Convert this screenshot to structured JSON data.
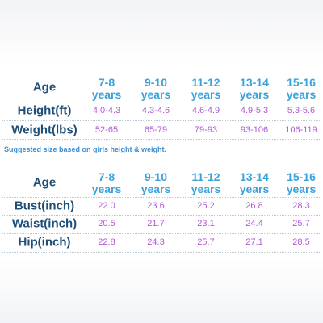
{
  "tables": [
    {
      "header": {
        "label": "Age",
        "columns": [
          {
            "age": "7-8",
            "unit": "years"
          },
          {
            "age": "9-10",
            "unit": "years"
          },
          {
            "age": "11-12",
            "unit": "years"
          },
          {
            "age": "13-14",
            "unit": "years"
          },
          {
            "age": "15-16",
            "unit": "years"
          }
        ]
      },
      "rows": [
        {
          "label": "Height(ft)",
          "values": [
            "4.0-4.3",
            "4.3-4.6",
            "4.6-4.9",
            "4.9-5.3",
            "5.3-5.6"
          ]
        },
        {
          "label": "Weight(lbs)",
          "values": [
            "52-65",
            "65-79",
            "79-93",
            "93-106",
            "106-119"
          ]
        }
      ],
      "note": "Suggested size based on girls height & weight."
    },
    {
      "header": {
        "label": "Age",
        "columns": [
          {
            "age": "7-8",
            "unit": "years"
          },
          {
            "age": "9-10",
            "unit": "years"
          },
          {
            "age": "11-12",
            "unit": "years"
          },
          {
            "age": "13-14",
            "unit": "years"
          },
          {
            "age": "15-16",
            "unit": "years"
          }
        ]
      },
      "rows": [
        {
          "label": "Bust(inch)",
          "values": [
            "22.0",
            "23.6",
            "25.2",
            "26.8",
            "28.3"
          ]
        },
        {
          "label": "Waist(inch)",
          "values": [
            "20.5",
            "21.7",
            "23.1",
            "24.4",
            "25.7"
          ]
        },
        {
          "label": "Hip(inch)",
          "values": [
            "22.8",
            "24.3",
            "25.7",
            "27.1",
            "28.5"
          ]
        }
      ]
    }
  ]
}
